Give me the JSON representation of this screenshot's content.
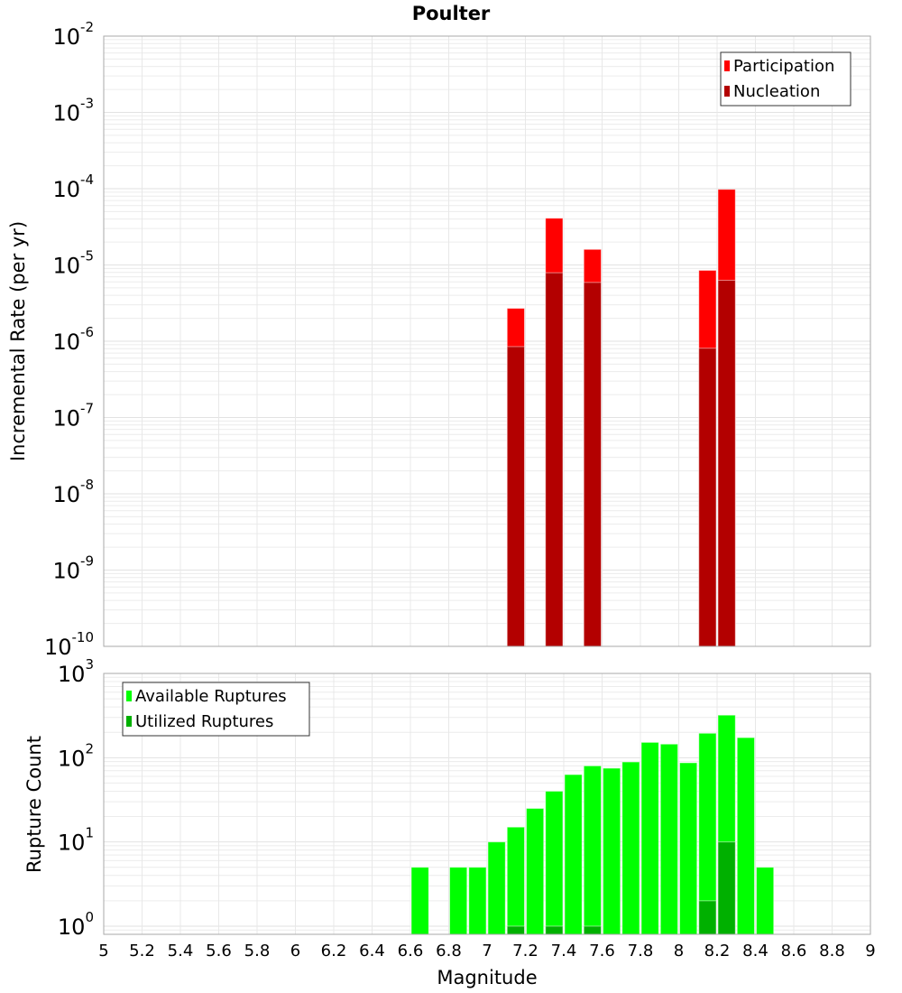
{
  "chart_data": [
    {
      "type": "bar",
      "title": "Poulter",
      "xlabel": "",
      "ylabel": "Incremental Rate (per yr)",
      "yscale": "log",
      "ylim": [
        1e-10,
        0.01
      ],
      "xlim": [
        5,
        9
      ],
      "ytick_exponents": [
        "-10",
        "-9",
        "-8",
        "-7",
        "-6",
        "-5",
        "-4",
        "-3",
        "-2"
      ],
      "grid": true,
      "legend_position": "top-right",
      "bin_width": 0.1,
      "x": [
        7.15,
        7.35,
        7.55,
        8.15,
        8.25
      ],
      "series": [
        {
          "name": "Participation",
          "color": "#ff0000",
          "values": [
            2.7e-06,
            4.1e-05,
            1.6e-05,
            8.5e-06,
            9.8e-05
          ]
        },
        {
          "name": "Nucleation",
          "color": "#b30000",
          "values": [
            8.5e-07,
            7.9e-06,
            5.9e-06,
            8.1e-07,
            6.3e-06
          ]
        }
      ]
    },
    {
      "type": "bar",
      "xlabel": "Magnitude",
      "ylabel": "Rupture Count",
      "yscale": "log",
      "ylim": [
        0.8,
        1000
      ],
      "xlim": [
        5,
        9
      ],
      "ytick_exponents": [
        "0",
        "1",
        "2",
        "3"
      ],
      "xticks": [
        "5",
        "5.2",
        "5.4",
        "5.6",
        "5.8",
        "6",
        "6.2",
        "6.4",
        "6.6",
        "6.8",
        "7",
        "7.2",
        "7.4",
        "7.6",
        "7.8",
        "8",
        "8.2",
        "8.4",
        "8.6",
        "8.8",
        "9"
      ],
      "grid": true,
      "legend_position": "top-left",
      "bin_width": 0.1,
      "x": [
        6.65,
        6.85,
        6.95,
        7.05,
        7.15,
        7.25,
        7.35,
        7.45,
        7.55,
        7.65,
        7.75,
        7.85,
        7.95,
        8.05,
        8.15,
        8.25,
        8.35,
        8.45
      ],
      "series": [
        {
          "name": "Available Ruptures",
          "color": "#00ff00",
          "values": [
            5,
            5,
            5,
            10,
            15,
            25,
            40,
            63,
            80,
            75,
            89,
            152,
            145,
            87,
            195,
            320,
            173,
            5
          ]
        },
        {
          "name": "Utilized Ruptures",
          "color": "#00b000",
          "values": [
            0,
            0,
            0,
            0,
            1,
            0,
            1,
            0,
            1,
            0,
            0,
            0,
            0,
            0,
            2,
            10,
            0,
            0
          ]
        }
      ]
    }
  ]
}
